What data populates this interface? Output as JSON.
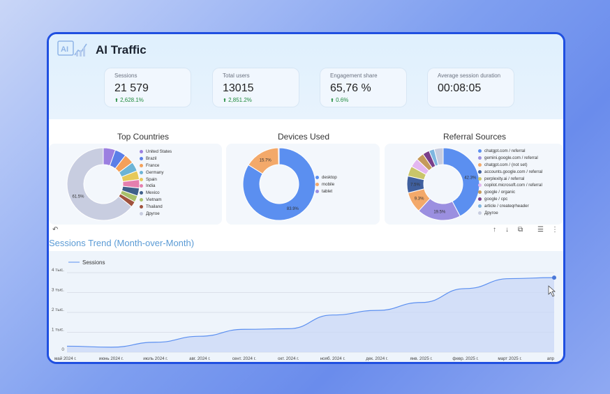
{
  "header": {
    "title": "AI Traffic",
    "logo_text": "AI"
  },
  "kpis": [
    {
      "label": "Sessions",
      "value": "21 579",
      "delta": "2,628.1%"
    },
    {
      "label": "Total users",
      "value": "13015",
      "delta": "2,851.2%"
    },
    {
      "label": "Engagement share",
      "value": "65,76 %",
      "delta": "0.6%"
    },
    {
      "label": "Average session duration",
      "value": "00:08:05",
      "delta": ""
    }
  ],
  "panels": {
    "countries_title": "Top Countries",
    "devices_title": "Devices Used",
    "referrals_title": "Referral Sources"
  },
  "trend": {
    "title": "Sessions Trend (Month-over-Month)",
    "legend": "Sessions"
  },
  "colors": {
    "accent": "#5b8ff0",
    "frame": "#1f4fe0",
    "positive": "#1f8a3c"
  },
  "icons": [
    "undo-icon",
    "arrow-up-icon",
    "arrow-down-icon",
    "export-icon",
    "filter-icon",
    "more-vert-icon"
  ],
  "chart_data": [
    {
      "type": "pie",
      "title": "Top Countries",
      "categories": [
        "United States",
        "Brazil",
        "France",
        "Germany",
        "Spain",
        "India",
        "Mexico",
        "Vietnam",
        "Thailand",
        "Другое"
      ],
      "values": [
        5.2,
        4.8,
        4.2,
        4.0,
        3.8,
        3.6,
        3.4,
        2.8,
        2.4,
        61.5
      ],
      "colors": [
        "#9b7fe0",
        "#5b7fe8",
        "#f3a05a",
        "#6cb4d6",
        "#e6c95a",
        "#e57fae",
        "#3f5f8a",
        "#a8c06a",
        "#a0523d",
        "#c8cde0"
      ],
      "labels": [
        "",
        "",
        "",
        "",
        "",
        "",
        "",
        "",
        "",
        "61.5%"
      ],
      "legend_position": "right"
    },
    {
      "type": "pie",
      "title": "Devices Used",
      "categories": [
        "desktop",
        "mobile",
        "tablet"
      ],
      "values": [
        83.9,
        15.7,
        0.4
      ],
      "colors": [
        "#5b8ff0",
        "#f3a96a",
        "#9b8fe0"
      ],
      "labels": [
        "83.9%",
        "15.7%",
        ""
      ],
      "legend_position": "right"
    },
    {
      "type": "pie",
      "title": "Referral Sources",
      "categories": [
        "chatgpt.com / referral",
        "gemini.google.com / referral",
        "chatgpt.com / (not set)",
        "accounts.google.com / referral",
        "perplexity.ai / referral",
        "copilot.microsoft.com / referral",
        "google / organic",
        "google / cpc",
        "article / createqrheader",
        "Другое"
      ],
      "values": [
        42.3,
        19.5,
        9.3,
        7.5,
        4.5,
        4.0,
        3.5,
        3.0,
        2.4,
        4.0
      ],
      "colors": [
        "#5b8ff0",
        "#9b8fe0",
        "#f3a96a",
        "#3f5f9e",
        "#c9c56a",
        "#e3b7f0",
        "#c59a5a",
        "#7a3f8a",
        "#7fb6e0",
        "#c8cde0"
      ],
      "labels": [
        "42.3%",
        "19.5%",
        "9.3%",
        "7.5%",
        "",
        "",
        "",
        "",
        "",
        ""
      ],
      "legend_position": "right"
    },
    {
      "type": "area",
      "title": "Sessions Trend (Month-over-Month)",
      "series": [
        {
          "name": "Sessions",
          "values": [
            300,
            250,
            500,
            800,
            1150,
            1180,
            1870,
            2100,
            2500,
            3200,
            3700,
            3750
          ]
        }
      ],
      "x": [
        "май 2024 г.",
        "июнь 2024 г.",
        "июль 2024 г.",
        "авг. 2024 г.",
        "сент. 2024 г.",
        "окт. 2024 г.",
        "нояб. 2024 г.",
        "дек. 2024 г.",
        "янв. 2025 г.",
        "февр. 2025 г.",
        "март 2025 г.",
        "апр"
      ],
      "yticks": [
        "0",
        "1 тыс.",
        "2 тыс.",
        "3 тыс.",
        "4 тыс."
      ],
      "ylim": [
        0,
        4000
      ],
      "grid": true,
      "legend_position": "top-left"
    }
  ]
}
